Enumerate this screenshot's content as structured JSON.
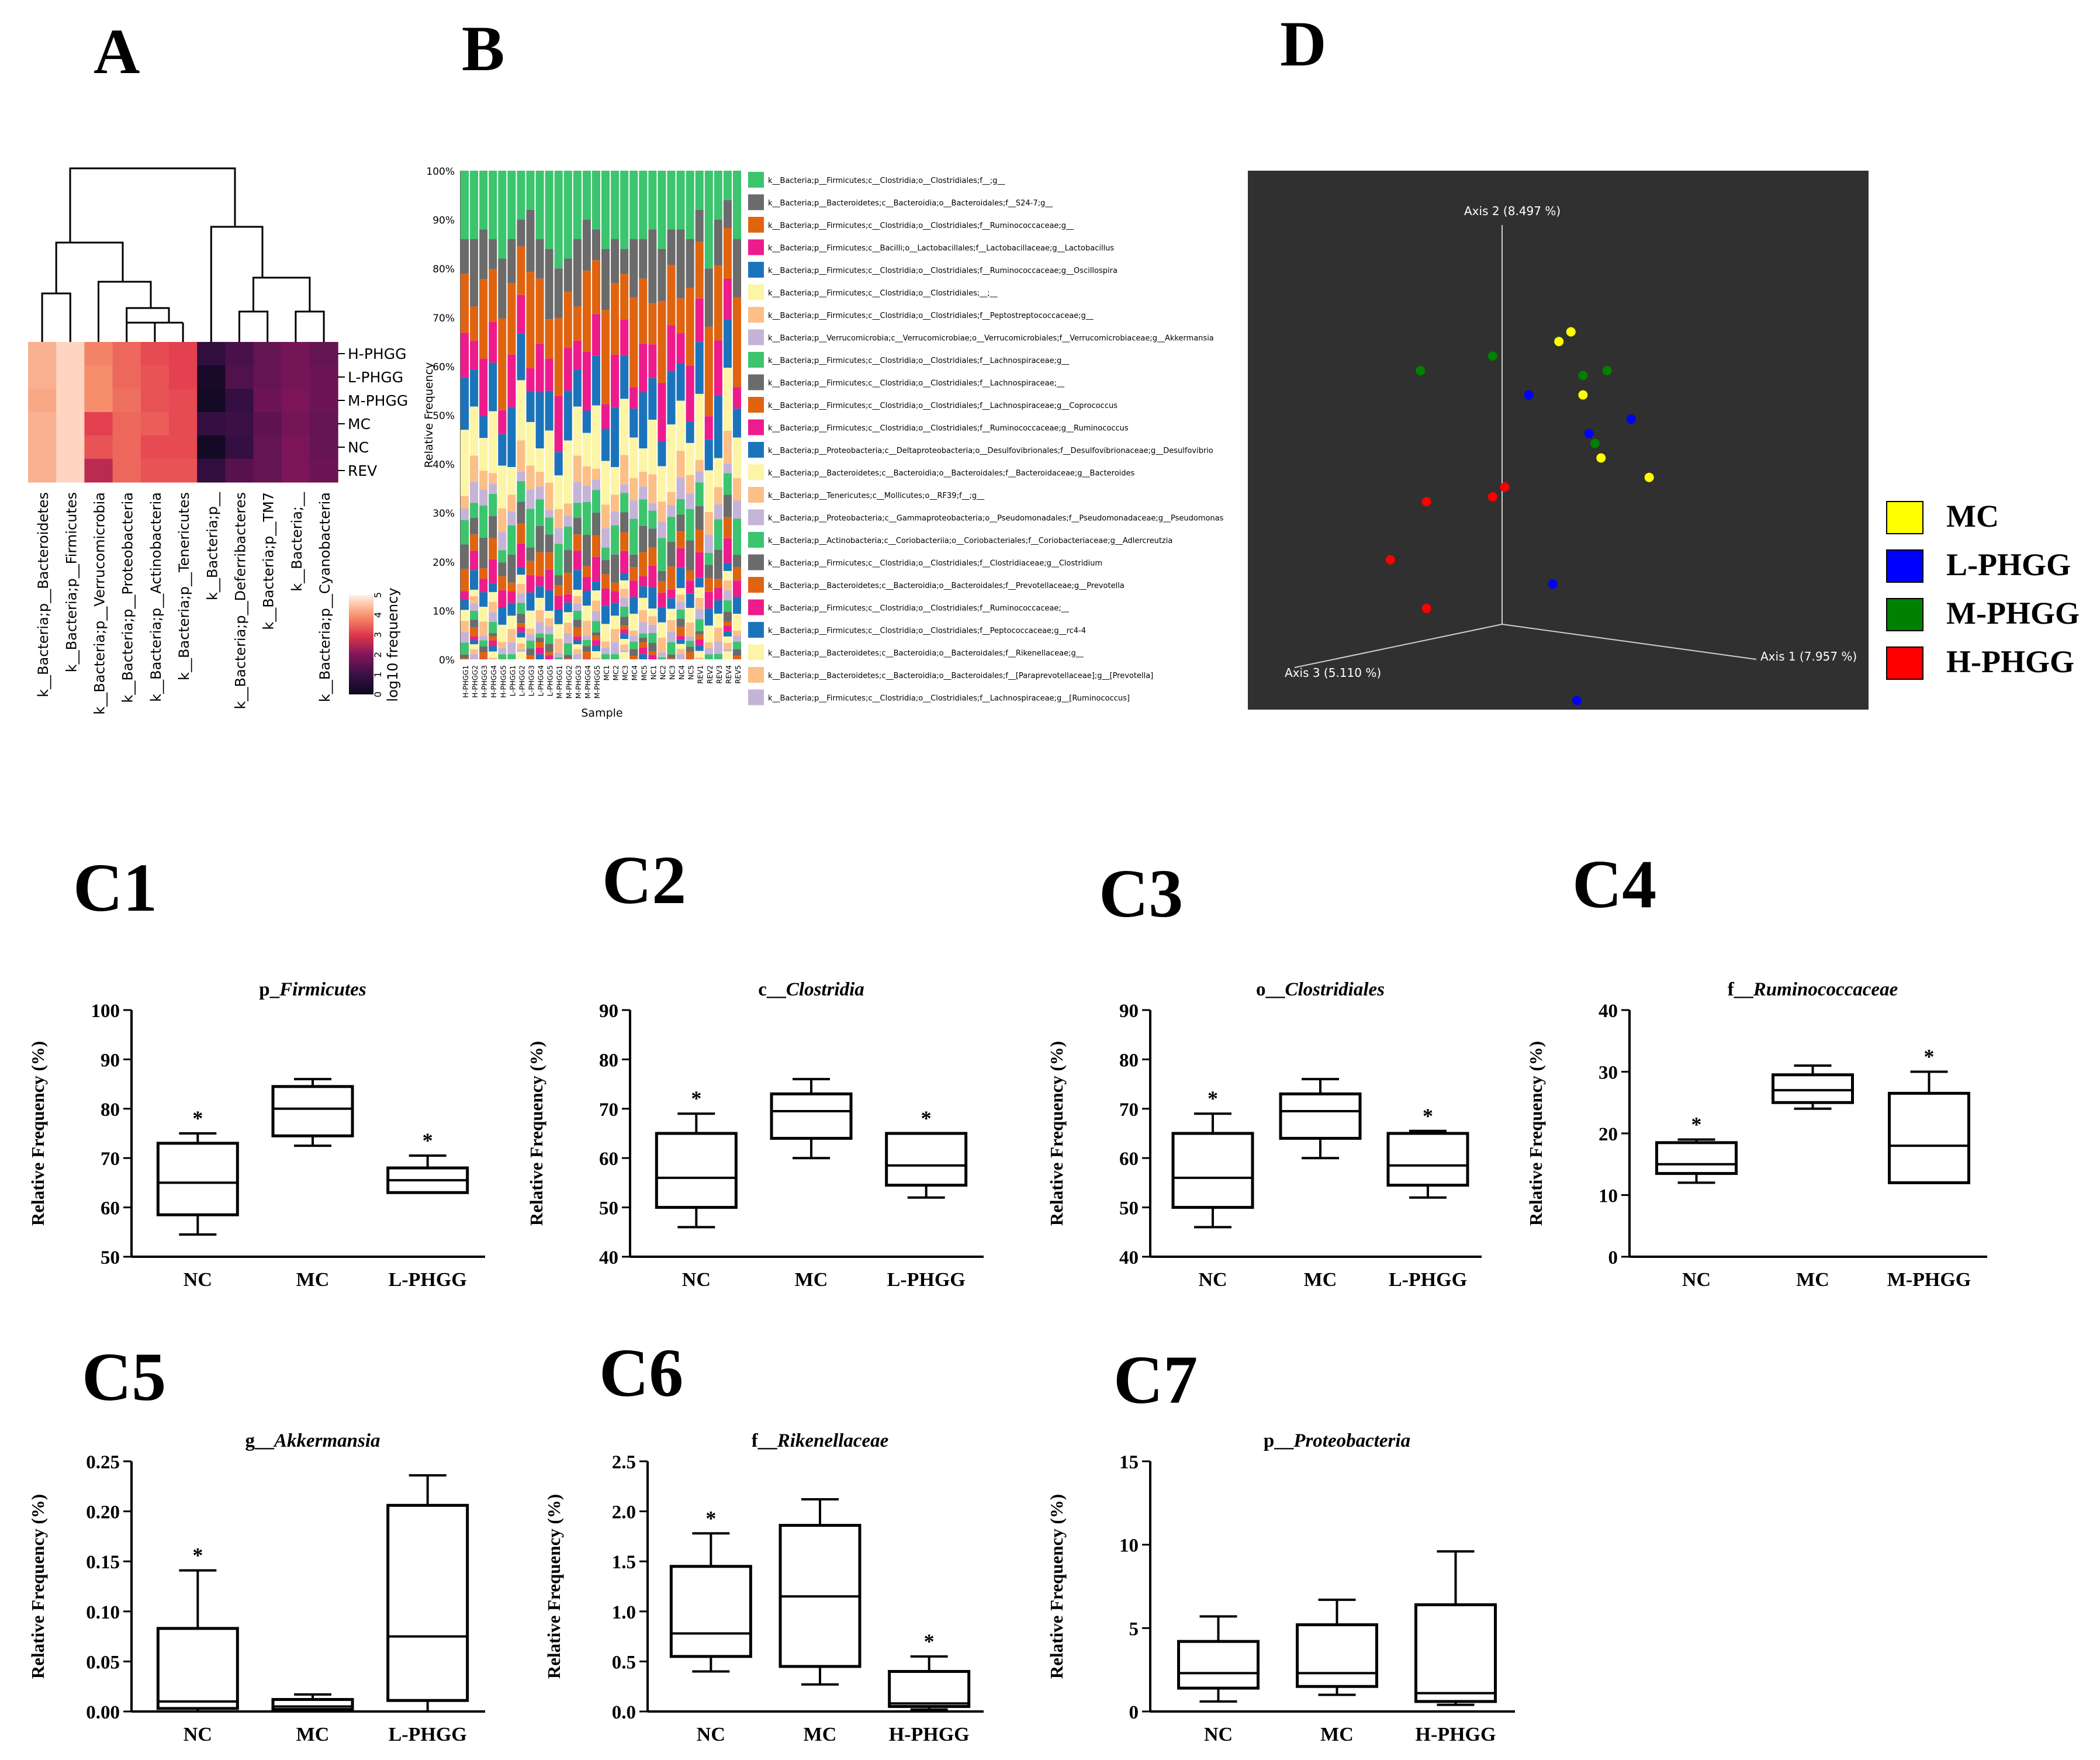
{
  "figure": {
    "panel_labels": {
      "A": "A",
      "B": "B",
      "D": "D"
    },
    "colors": {
      "dark_bg": "#303030",
      "mc": "#ffff00",
      "lphgg": "#0000ff",
      "mphgg": "#008000",
      "hphgg": "#ff0000"
    }
  },
  "chart_data": [
    {
      "id": "A",
      "type": "heatmap",
      "title": "A",
      "rows": [
        "H-PHGG",
        "L-PHGG",
        "M-PHGG",
        "MC",
        "NC",
        "REV"
      ],
      "columns": [
        "k__Bacteria;p__Bacteroidetes",
        "k__Bacteria;p__Firmicutes",
        "k__Bacteria;p__Verrucomicrobia",
        "k__Bacteria;p__Proteobacteria",
        "k__Bacteria;p__Actinobacteria",
        "k__Bacteria;p__Tenericutes",
        "k__Bacteria;p__",
        "k__Bacteria;p__Deferribacteres",
        "k__Bacteria;p__TM7",
        "k__Bacteria;__",
        "k__Bacteria;p__Cyanobacteria"
      ],
      "values_log10": [
        [
          4.3,
          4.7,
          3.8,
          3.5,
          3.2,
          3.1,
          0.8,
          1.2,
          1.6,
          1.8,
          1.6
        ],
        [
          4.3,
          4.7,
          3.9,
          3.5,
          3.3,
          3.1,
          0.3,
          1.3,
          1.6,
          1.8,
          1.7
        ],
        [
          4.2,
          4.7,
          3.9,
          3.6,
          3.3,
          3.2,
          0.2,
          0.9,
          1.7,
          1.9,
          1.7
        ],
        [
          4.3,
          4.7,
          3.1,
          3.5,
          3.4,
          3.2,
          0.9,
          1.0,
          1.5,
          1.8,
          1.6
        ],
        [
          4.3,
          4.7,
          3.3,
          3.5,
          3.2,
          3.2,
          0.2,
          0.9,
          1.6,
          1.9,
          1.6
        ],
        [
          4.3,
          4.7,
          2.6,
          3.5,
          3.3,
          3.3,
          0.8,
          1.4,
          1.6,
          1.9,
          1.7
        ]
      ],
      "colorbar_label": "log10 frequency",
      "colorbar_ticks": [
        "0",
        "1",
        "2",
        "3",
        "4",
        "5"
      ]
    },
    {
      "id": "B",
      "type": "bar",
      "title": "B",
      "ylabel": "Relative Frequency",
      "xlabel": "Sample",
      "yticks": [
        "0%",
        "10%",
        "20%",
        "30%",
        "40%",
        "50%",
        "60%",
        "70%",
        "80%",
        "90%",
        "100%"
      ],
      "samples": [
        "H-PHGG1",
        "H-PHGG2",
        "H-PHGG3",
        "H-PHGG4",
        "H-PHGG5",
        "L-PHGG1",
        "L-PHGG2",
        "L-PHGG3",
        "L-PHGG4",
        "L-PHGG5",
        "M-PHGG1",
        "M-PHGG2",
        "M-PHGG3",
        "M-PHGG4",
        "M-PHGG5",
        "MC1",
        "MC2",
        "MC3",
        "MC4",
        "MC5",
        "NC1",
        "NC2",
        "NC3",
        "NC4",
        "NC5",
        "REV1",
        "REV2",
        "REV3",
        "REV4",
        "REV5"
      ],
      "legend": [
        "k__Bacteria;p__Firmicutes;c__Clostridia;o__Clostridiales;f__;g__",
        "k__Bacteria;p__Bacteroidetes;c__Bacteroidia;o__Bacteroidales;f__S24-7;g__",
        "k__Bacteria;p__Firmicutes;c__Clostridia;o__Clostridiales;f__Ruminococcaceae;g__",
        "k__Bacteria;p__Firmicutes;c__Bacilli;o__Lactobacillales;f__Lactobacillaceae;g__Lactobacillus",
        "k__Bacteria;p__Firmicutes;c__Clostridia;o__Clostridiales;f__Ruminococcaceae;g__Oscillospira",
        "k__Bacteria;p__Firmicutes;c__Clostridia;o__Clostridiales;__;__",
        "k__Bacteria;p__Firmicutes;c__Clostridia;o__Clostridiales;f__Peptostreptococcaceae;g__",
        "k__Bacteria;p__Verrucomicrobia;c__Verrucomicrobiae;o__Verrucomicrobiales;f__Verrucomicrobiaceae;g__Akkermansia",
        "k__Bacteria;p__Firmicutes;c__Clostridia;o__Clostridiales;f__Lachnospiraceae;g__",
        "k__Bacteria;p__Firmicutes;c__Clostridia;o__Clostridiales;f__Lachnospiraceae;__",
        "k__Bacteria;p__Firmicutes;c__Clostridia;o__Clostridiales;f__Lachnospiraceae;g__Coprococcus",
        "k__Bacteria;p__Firmicutes;c__Clostridia;o__Clostridiales;f__Ruminococcaceae;g__Ruminococcus",
        "k__Bacteria;p__Proteobacteria;c__Deltaproteobacteria;o__Desulfovibrionales;f__Desulfovibrionaceae;g__Desulfovibrio",
        "k__Bacteria;p__Bacteroidetes;c__Bacteroidia;o__Bacteroidales;f__Bacteroidaceae;g__Bacteroides",
        "k__Bacteria;p__Tenericutes;c__Mollicutes;o__RF39;f__;g__",
        "k__Bacteria;p__Proteobacteria;c__Gammaproteobacteria;o__Pseudomonadales;f__Pseudomonadaceae;g__Pseudomonas",
        "k__Bacteria;p__Actinobacteria;c__Coriobacteriia;o__Coriobacteriales;f__Coriobacteriaceae;g__Adlercreutzia",
        "k__Bacteria;p__Firmicutes;c__Clostridia;o__Clostridiales;f__Clostridiaceae;g__Clostridium",
        "k__Bacteria;p__Bacteroidetes;c__Bacteroidia;o__Bacteroidales;f__Prevotellaceae;g__Prevotella",
        "k__Bacteria;p__Firmicutes;c__Clostridia;o__Clostridiales;f__Ruminococcaceae;__",
        "k__Bacteria;p__Firmicutes;c__Clostridia;o__Clostridiales;f__Peptococcaceae;g__rc4-4",
        "k__Bacteria;p__Bacteroidetes;c__Bacteroidia;o__Bacteroidales;f__Rikenellaceae;g__",
        "k__Bacteria;p__Bacteroidetes;c__Bacteroidia;o__Bacteroidales;f__[Paraprevotellaceae];g__[Prevotella]",
        "k__Bacteria;p__Firmicutes;c__Clostridia;o__Clostridiales;f__Lachnospiraceae;g__[Ruminococcus]"
      ],
      "legend_colors": [
        "#3cc46e",
        "#6b6b6b",
        "#e06410",
        "#ee1b8c",
        "#1b74bb",
        "#fdf5a6",
        "#fcbf88",
        "#c6b3d8",
        "#3cc46e",
        "#6b6b6b",
        "#e06410",
        "#ee1b8c",
        "#1b74bb",
        "#fdf5a6",
        "#fcbf88",
        "#c6b3d8",
        "#3cc46e",
        "#6b6b6b",
        "#e06410",
        "#ee1b8c",
        "#1b74bb",
        "#fdf5a6",
        "#fcbf88",
        "#c6b3d8"
      ],
      "top_segment_start": [
        0.86,
        0.86,
        0.88,
        0.86,
        0.82,
        0.86,
        0.9,
        0.92,
        0.86,
        0.84,
        0.8,
        0.82,
        0.86,
        0.9,
        0.88,
        0.84,
        0.86,
        0.84,
        0.86,
        0.86,
        0.88,
        0.84,
        0.88,
        0.88,
        0.86,
        0.92,
        0.8,
        0.9,
        0.94,
        0.86
      ],
      "segment_weights": [
        0,
        1.2,
        1.6,
        1.0,
        1.0,
        1.1,
        0.5,
        0.35,
        0.6,
        0.5,
        0.4,
        0.4,
        0.35,
        0.3,
        0.25,
        0.2,
        0.2,
        0.15,
        0.15,
        0.15,
        0.12,
        0.12,
        0.1,
        0.1
      ]
    },
    {
      "id": "D",
      "type": "scatter",
      "title": "D",
      "axis_labels": {
        "axis1": "Axis 1 (7.957 %)",
        "axis2": "Axis 2 (8.497 %)",
        "axis3": "Axis 3 (5.110 %)"
      },
      "series": [
        {
          "name": "MC",
          "color": "#ffff00",
          "points": [
            [
              0.24,
              0.21
            ],
            [
              0.26,
              0.19
            ],
            [
              0.28,
              0.32
            ],
            [
              0.31,
              0.45
            ],
            [
              0.39,
              0.49
            ]
          ]
        },
        {
          "name": "L-PHGG",
          "color": "#0000ff",
          "points": [
            [
              0.19,
              0.32
            ],
            [
              0.29,
              0.4
            ],
            [
              0.36,
              0.37
            ],
            [
              0.23,
              0.71
            ],
            [
              0.27,
              0.95
            ]
          ]
        },
        {
          "name": "M-PHGG",
          "color": "#008000",
          "points": [
            [
              0.01,
              0.27
            ],
            [
              0.13,
              0.24
            ],
            [
              0.28,
              0.28
            ],
            [
              0.32,
              0.27
            ],
            [
              0.3,
              0.42
            ]
          ]
        },
        {
          "name": "H-PHGG",
          "color": "#ff0000",
          "points": [
            [
              0.02,
              0.54
            ],
            [
              0.13,
              0.53
            ],
            [
              0.15,
              0.51
            ],
            [
              -0.04,
              0.66
            ],
            [
              0.02,
              0.76
            ]
          ]
        }
      ],
      "legend": [
        "MC",
        "L-PHGG",
        "M-PHGG",
        "H-PHGG"
      ]
    },
    {
      "id": "C1",
      "type": "box",
      "label": "C1",
      "title_prefix": "p_",
      "title_taxon": "Firmicutes",
      "ylabel": "Relative Frequency (%)",
      "ylim": [
        50,
        100
      ],
      "yticks": [
        "50",
        "60",
        "70",
        "80",
        "90",
        "100"
      ],
      "categories": [
        "NC",
        "MC",
        "L-PHGG"
      ],
      "boxes": [
        [
          54.5,
          58.5,
          65.0,
          73.0,
          75.0
        ],
        [
          72.5,
          74.5,
          80.0,
          84.5,
          86.0
        ],
        [
          63.0,
          63.0,
          65.5,
          68.0,
          70.5
        ]
      ],
      "asterisk": [
        "*",
        "",
        "*"
      ]
    },
    {
      "id": "C2",
      "type": "box",
      "label": "C2",
      "title_prefix": "c__",
      "title_taxon": "Clostridia",
      "ylabel": "Relative Frequency (%)",
      "ylim": [
        40,
        90
      ],
      "yticks": [
        "40",
        "50",
        "60",
        "70",
        "80",
        "90"
      ],
      "categories": [
        "NC",
        "MC",
        "L-PHGG"
      ],
      "boxes": [
        [
          46.0,
          50.0,
          56.0,
          65.0,
          69.0
        ],
        [
          60.0,
          64.0,
          69.5,
          73.0,
          76.0
        ],
        [
          52.0,
          54.5,
          58.5,
          65.0,
          65.0
        ]
      ],
      "asterisk": [
        "*",
        "",
        "*"
      ]
    },
    {
      "id": "C3",
      "type": "box",
      "label": "C3",
      "title_prefix": "o__",
      "title_taxon": "Clostridiales",
      "ylabel": "Relative Frequency (%)",
      "ylim": [
        40,
        90
      ],
      "yticks": [
        "40",
        "50",
        "60",
        "70",
        "80",
        "90"
      ],
      "categories": [
        "NC",
        "MC",
        "L-PHGG"
      ],
      "boxes": [
        [
          46.0,
          50.0,
          56.0,
          65.0,
          69.0
        ],
        [
          60.0,
          64.0,
          69.5,
          73.0,
          76.0
        ],
        [
          52.0,
          54.5,
          58.5,
          65.0,
          65.5
        ]
      ],
      "asterisk": [
        "*",
        "",
        "*"
      ]
    },
    {
      "id": "C4",
      "type": "box",
      "label": "C4",
      "title_prefix": "f__",
      "title_taxon": "Ruminococcaceae",
      "ylabel": "Relative Frequency (%)",
      "ylim": [
        0,
        40
      ],
      "yticks": [
        "0",
        "10",
        "20",
        "30",
        "40"
      ],
      "categories": [
        "NC",
        "MC",
        "M-PHGG"
      ],
      "boxes": [
        [
          12.0,
          13.5,
          15.0,
          18.5,
          19.0
        ],
        [
          24.0,
          25.0,
          27.0,
          29.5,
          31.0
        ],
        [
          12.0,
          12.0,
          18.0,
          26.5,
          30.0
        ]
      ],
      "asterisk": [
        "*",
        "",
        "*"
      ]
    },
    {
      "id": "C5",
      "type": "box",
      "label": "C5",
      "title_prefix": "g__",
      "title_taxon": "Akkermansia",
      "ylabel": "Relative Frequency (%)",
      "ylim": [
        0,
        0.25
      ],
      "yticks": [
        "0.00",
        "0.05",
        "0.10",
        "0.15",
        "0.20",
        "0.25"
      ],
      "categories": [
        "NC",
        "MC",
        "L-PHGG"
      ],
      "boxes": [
        [
          0.0,
          0.003,
          0.01,
          0.083,
          0.141
        ],
        [
          0.0,
          0.002,
          0.005,
          0.012,
          0.017
        ],
        [
          0.0,
          0.011,
          0.075,
          0.206,
          0.236
        ]
      ],
      "asterisk": [
        "*",
        "",
        ""
      ]
    },
    {
      "id": "C6",
      "type": "box",
      "label": "C6",
      "title_prefix": "f__",
      "title_taxon": "Rikenellaceae",
      "ylabel": "Relative Frequency (%)",
      "ylim": [
        0,
        2.5
      ],
      "yticks": [
        "0.0",
        "0.5",
        "1.0",
        "1.5",
        "2.0",
        "2.5"
      ],
      "categories": [
        "NC",
        "MC",
        "H-PHGG"
      ],
      "boxes": [
        [
          0.4,
          0.55,
          0.78,
          1.45,
          1.78
        ],
        [
          0.27,
          0.45,
          1.15,
          1.86,
          2.12
        ],
        [
          0.02,
          0.05,
          0.08,
          0.4,
          0.55
        ]
      ],
      "asterisk": [
        "*",
        "",
        "*"
      ]
    },
    {
      "id": "C7",
      "type": "box",
      "label": "C7",
      "title_prefix": "p__",
      "title_taxon": "Proteobacteria",
      "ylabel": "Relative Frequency (%)",
      "ylim": [
        0,
        15
      ],
      "yticks": [
        "0",
        "5",
        "10",
        "15"
      ],
      "categories": [
        "NC",
        "MC",
        "H-PHGG"
      ],
      "boxes": [
        [
          0.6,
          1.4,
          2.3,
          4.2,
          5.7
        ],
        [
          1.0,
          1.5,
          2.3,
          5.2,
          6.7
        ],
        [
          0.4,
          0.6,
          1.1,
          6.4,
          9.6
        ]
      ],
      "asterisk": [
        "",
        "",
        ""
      ]
    }
  ]
}
